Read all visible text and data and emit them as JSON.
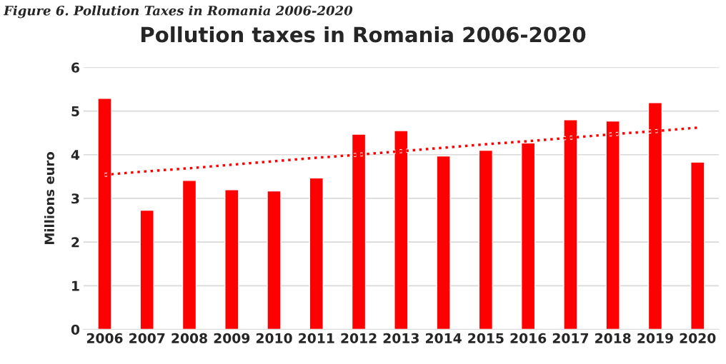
{
  "chart_data": {
    "type": "bar",
    "title": "Pollution taxes in Romania 2006-2020",
    "annotations": [
      "Figure 6. Pollution Taxes in Romania 2006-2020"
    ],
    "ylabel": "Millions euro",
    "categories": [
      "2006",
      "2007",
      "2008",
      "2009",
      "2010",
      "2011",
      "2012",
      "2013",
      "2014",
      "2015",
      "2016",
      "2017",
      "2018",
      "2019",
      "2020"
    ],
    "series": [
      {
        "color": "#ff0000",
        "values": [
          5.29,
          2.73,
          3.41,
          3.2,
          3.17,
          3.47,
          4.47,
          4.55,
          3.97,
          4.1,
          4.27,
          4.8,
          4.77,
          5.19,
          3.83
        ]
      },
      {
        "type": "line",
        "color": "#ff0000",
        "line_style": "dotted",
        "values": [
          3.54,
          3.62,
          3.69,
          3.77,
          3.85,
          3.93,
          4.0,
          4.08,
          4.16,
          4.24,
          4.31,
          4.39,
          4.47,
          4.54,
          4.62
        ]
      }
    ],
    "ylim": [
      0,
      6
    ],
    "yticks": [
      0,
      1,
      2,
      3,
      4,
      5,
      6
    ],
    "grid": "y",
    "legend": false
  }
}
